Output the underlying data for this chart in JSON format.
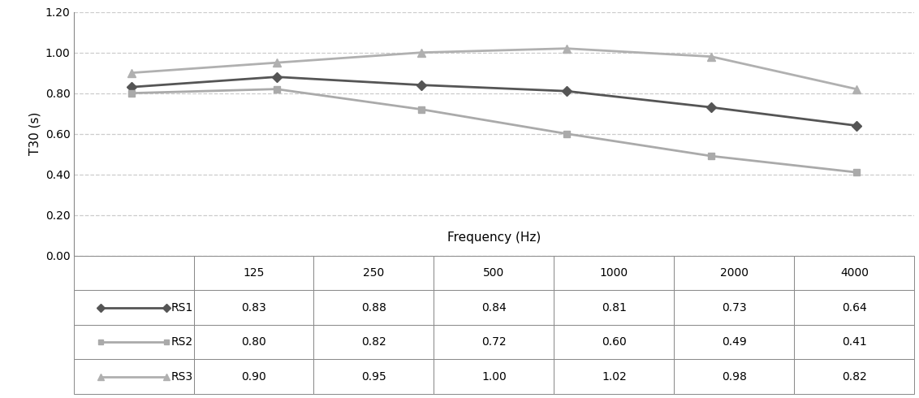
{
  "frequencies": [
    125,
    250,
    500,
    1000,
    2000,
    4000
  ],
  "freq_labels": [
    "125",
    "250",
    "500",
    "1000",
    "2000",
    "4000"
  ],
  "series_order": [
    "RS1",
    "RS2",
    "RS3"
  ],
  "series": {
    "RS1": {
      "values": [
        0.83,
        0.88,
        0.84,
        0.81,
        0.73,
        0.64
      ],
      "color": "#555555",
      "marker": "D",
      "markersize": 6,
      "linewidth": 2.0
    },
    "RS2": {
      "values": [
        0.8,
        0.82,
        0.72,
        0.6,
        0.49,
        0.41
      ],
      "color": "#aaaaaa",
      "marker": "s",
      "markersize": 6,
      "linewidth": 2.0
    },
    "RS3": {
      "values": [
        0.9,
        0.95,
        1.0,
        1.02,
        0.98,
        0.82
      ],
      "color": "#b0b0b0",
      "marker": "^",
      "markersize": 7,
      "linewidth": 2.0
    }
  },
  "ylabel": "T30 (s)",
  "xlabel": "Frequency (Hz)",
  "ylim": [
    0.0,
    1.2
  ],
  "ytick_values": [
    0.0,
    0.2,
    0.4,
    0.6,
    0.8,
    1.0,
    1.2
  ],
  "ytick_labels": [
    "0.00",
    "0.20",
    "0.40",
    "0.60",
    "0.80",
    "1.00",
    "1.20"
  ],
  "grid_color": "#cccccc",
  "bg_color": "#ffffff",
  "border_color": "#888888",
  "table_row_data": {
    "RS1": [
      "0.83",
      "0.88",
      "0.84",
      "0.81",
      "0.73",
      "0.64"
    ],
    "RS2": [
      "0.80",
      "0.82",
      "0.72",
      "0.60",
      "0.49",
      "0.41"
    ],
    "RS3": [
      "0.90",
      "0.95",
      "1.00",
      "1.02",
      "0.98",
      "0.82"
    ]
  },
  "font_size": 10,
  "label_font_size": 11
}
